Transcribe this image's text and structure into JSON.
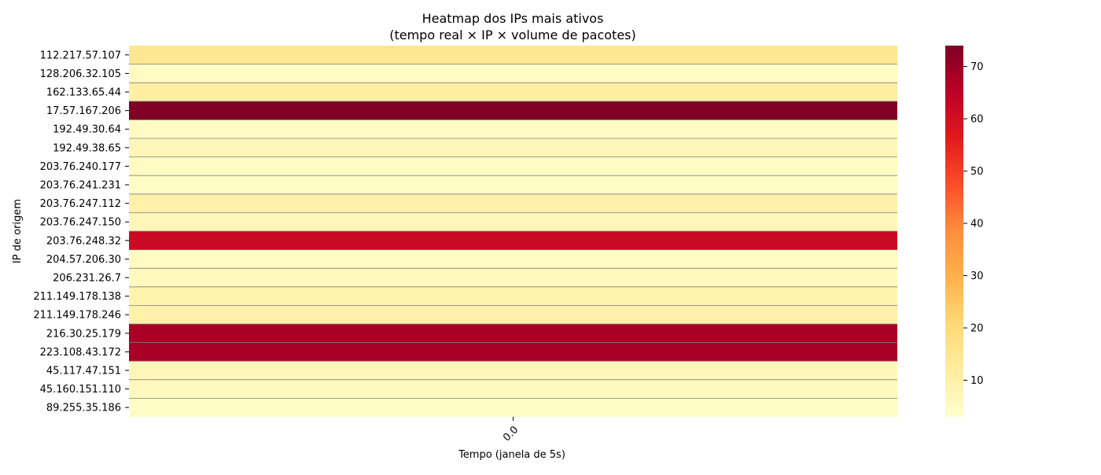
{
  "chart_data": {
    "type": "heatmap",
    "title_line1": "Heatmap dos IPs mais ativos",
    "title_line2": "(tempo real × IP × volume de pacotes)",
    "xlabel": "Tempo (janela de 5s)",
    "ylabel": "IP de origem",
    "x_categories": [
      "0.0"
    ],
    "rows": [
      {
        "ip": "112.217.57.107",
        "value": 15
      },
      {
        "ip": "128.206.32.105",
        "value": 5
      },
      {
        "ip": "162.133.65.44",
        "value": 11
      },
      {
        "ip": "17.57.167.206",
        "value": 74
      },
      {
        "ip": "192.49.30.64",
        "value": 5
      },
      {
        "ip": "192.49.38.65",
        "value": 7
      },
      {
        "ip": "203.76.240.177",
        "value": 5
      },
      {
        "ip": "203.76.241.231",
        "value": 4
      },
      {
        "ip": "203.76.247.112",
        "value": 10
      },
      {
        "ip": "203.76.247.150",
        "value": 7
      },
      {
        "ip": "203.76.248.32",
        "value": 62
      },
      {
        "ip": "204.57.206.30",
        "value": 5
      },
      {
        "ip": "206.231.26.7",
        "value": 6
      },
      {
        "ip": "211.149.178.138",
        "value": 9
      },
      {
        "ip": "211.149.178.246",
        "value": 10
      },
      {
        "ip": "216.30.25.179",
        "value": 68
      },
      {
        "ip": "223.108.43.172",
        "value": 68
      },
      {
        "ip": "45.117.47.151",
        "value": 7
      },
      {
        "ip": "45.160.151.110",
        "value": 6
      },
      {
        "ip": "89.255.35.186",
        "value": 4
      }
    ],
    "colorbar": {
      "min": 3,
      "max": 74,
      "ticks": [
        10,
        20,
        30,
        40,
        50,
        60,
        70
      ],
      "colormap": "YlOrRd",
      "stops": [
        "#ffffcc",
        "#ffeda0",
        "#fed976",
        "#feb24c",
        "#fd8d3c",
        "#fc4e2a",
        "#e31a1c",
        "#bd0026",
        "#800026"
      ]
    },
    "grid_line_color": "#808080"
  }
}
